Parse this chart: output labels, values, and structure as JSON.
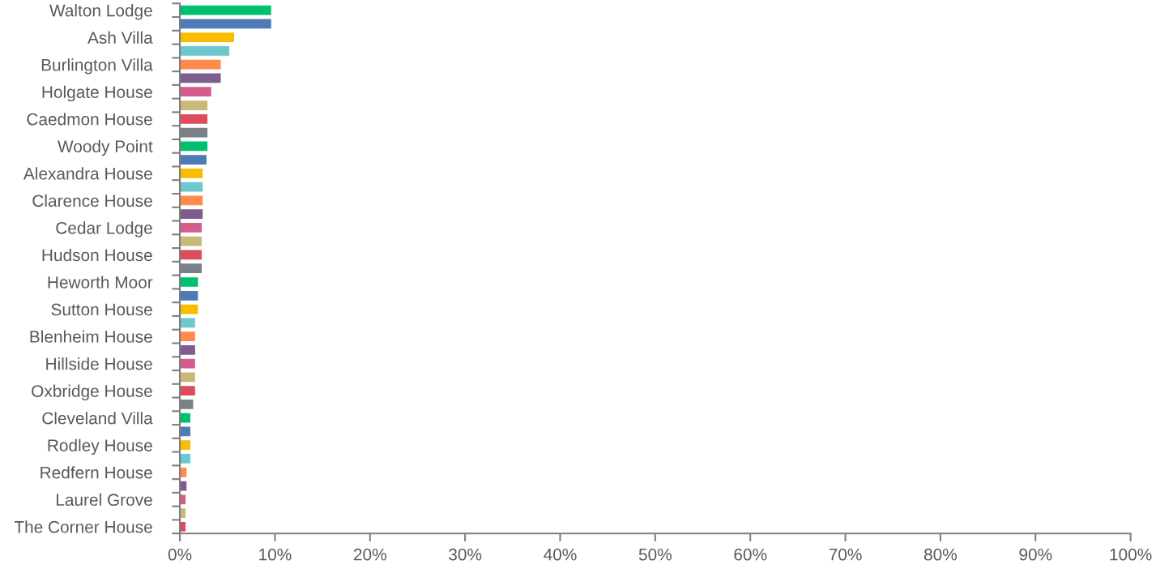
{
  "chart_data": {
    "type": "bar",
    "orientation": "horizontal",
    "categories": [
      "Walton Lodge",
      null,
      "Ash Villa",
      null,
      "Burlington Villa",
      null,
      "Holgate House",
      null,
      "Caedmon House",
      null,
      "Woody Point",
      null,
      "Alexandra House",
      null,
      "Clarence House",
      null,
      "Cedar Lodge",
      null,
      "Hudson House",
      null,
      "Heworth Moor",
      null,
      "Sutton House",
      null,
      "Blenheim House",
      null,
      "Hillside House",
      null,
      "Oxbridge House",
      null,
      "Cleveland Villa",
      null,
      "Rodley House",
      null,
      "Redfern House",
      null,
      "Laurel Grove",
      null,
      "The Corner House"
    ],
    "values": [
      9.6,
      9.6,
      5.7,
      5.2,
      4.3,
      4.3,
      3.3,
      2.9,
      2.9,
      2.9,
      2.9,
      2.8,
      2.4,
      2.4,
      2.4,
      2.4,
      2.3,
      2.3,
      2.3,
      2.3,
      1.9,
      1.9,
      1.9,
      1.6,
      1.6,
      1.6,
      1.6,
      1.6,
      1.6,
      1.4,
      1.1,
      1.1,
      1.1,
      1.1,
      0.7,
      0.7,
      0.6,
      0.6,
      0.6
    ],
    "colors": [
      "#00bf6f",
      "#4e7ab5",
      "#f8bd00",
      "#6cc8cc",
      "#ff8a4c",
      "#7d5c8e",
      "#d45c8c",
      "#c8b87a",
      "#dd4d5c",
      "#7a8087",
      "#00bf6f",
      "#4e7ab5",
      "#f8bd00",
      "#6cc8cc",
      "#ff8a4c",
      "#7d5c8e",
      "#d45c8c",
      "#c8b87a",
      "#dd4d5c",
      "#7a8087",
      "#00bf6f",
      "#4e7ab5",
      "#f8bd00",
      "#6cc8cc",
      "#ff8a4c",
      "#7d5c8e",
      "#d45c8c",
      "#c8b87a",
      "#dd4d5c",
      "#7a8087",
      "#00bf6f",
      "#4e7ab5",
      "#f8bd00",
      "#6cc8cc",
      "#ff8a4c",
      "#7d5c8e",
      "#d45c8c",
      "#c8b87a",
      "#dd4d5c"
    ],
    "xlim": [
      0,
      100
    ],
    "xticks": [
      {
        "value": 0,
        "label": "0%"
      },
      {
        "value": 10,
        "label": "10%"
      },
      {
        "value": 20,
        "label": "20%"
      },
      {
        "value": 30,
        "label": "30%"
      },
      {
        "value": 40,
        "label": "40%"
      },
      {
        "value": 50,
        "label": "50%"
      },
      {
        "value": 60,
        "label": "60%"
      },
      {
        "value": 70,
        "label": "70%"
      },
      {
        "value": 80,
        "label": "80%"
      },
      {
        "value": 90,
        "label": "90%"
      },
      {
        "value": 100,
        "label": "100%"
      }
    ],
    "grid": false,
    "legend": false
  }
}
